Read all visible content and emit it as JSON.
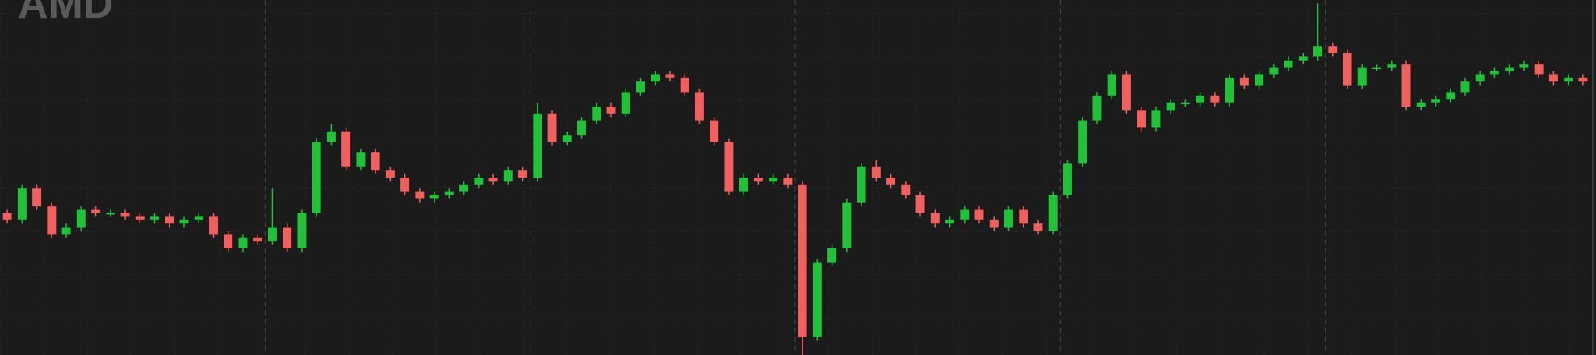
{
  "chart_data": {
    "type": "candlestick",
    "watermark": "AMD",
    "ylim": [
      0,
      100
    ],
    "up_color": "#22c13a",
    "down_color": "#f0605e",
    "open": [
      40,
      38,
      47,
      42,
      34,
      36,
      41,
      40,
      40,
      39,
      38,
      39,
      37,
      38,
      39,
      34,
      30,
      33,
      32,
      36,
      30,
      40,
      60,
      63,
      53,
      57,
      52,
      50,
      46,
      44,
      45,
      46,
      48,
      50,
      49,
      52,
      50,
      68,
      60,
      62,
      66,
      70,
      68,
      74,
      77,
      79,
      78,
      74,
      66,
      60,
      46,
      50,
      49,
      50,
      48,
      5,
      26,
      30,
      43,
      53,
      50,
      48,
      45,
      40,
      37,
      38,
      41,
      38,
      36,
      41,
      37,
      35,
      45,
      54,
      66,
      73,
      79,
      69,
      64,
      69,
      71,
      71,
      73,
      71,
      78,
      76,
      79,
      81,
      83,
      84,
      87,
      85,
      76,
      81,
      81,
      82,
      70,
      71,
      72,
      74,
      77,
      79,
      80,
      81,
      82,
      79,
      77,
      78
    ],
    "high": [
      41,
      48,
      48,
      43,
      37,
      42,
      42,
      41,
      41,
      40,
      40,
      40,
      39,
      40,
      40,
      35,
      34,
      34,
      47,
      37,
      41,
      61,
      65,
      64,
      58,
      58,
      53,
      51,
      47,
      46,
      47,
      49,
      51,
      51,
      53,
      53,
      71,
      69,
      63,
      67,
      71,
      71,
      75,
      78,
      80,
      80,
      79,
      75,
      67,
      61,
      51,
      51,
      51,
      51,
      49,
      27,
      31,
      44,
      54,
      55,
      51,
      49,
      46,
      41,
      39,
      42,
      42,
      39,
      42,
      42,
      38,
      46,
      55,
      67,
      74,
      80,
      80,
      70,
      70,
      72,
      72,
      74,
      74,
      79,
      79,
      80,
      82,
      84,
      85,
      99,
      88,
      86,
      82,
      82,
      83,
      83,
      72,
      73,
      75,
      78,
      80,
      81,
      82,
      83,
      83,
      80,
      79,
      79
    ],
    "low": [
      37,
      37,
      41,
      33,
      33,
      35,
      39,
      39,
      38,
      37,
      37,
      36,
      36,
      37,
      33,
      29,
      29,
      31,
      31,
      29,
      29,
      39,
      59,
      52,
      52,
      51,
      49,
      45,
      43,
      43,
      44,
      45,
      47,
      48,
      48,
      49,
      49,
      59,
      59,
      61,
      65,
      67,
      67,
      73,
      76,
      77,
      73,
      65,
      59,
      45,
      45,
      48,
      48,
      47,
      0,
      4,
      25,
      29,
      42,
      49,
      47,
      44,
      39,
      36,
      36,
      37,
      37,
      35,
      35,
      36,
      34,
      34,
      44,
      53,
      65,
      72,
      68,
      63,
      63,
      68,
      70,
      70,
      70,
      70,
      75,
      75,
      78,
      80,
      82,
      83,
      84,
      75,
      75,
      80,
      80,
      69,
      69,
      70,
      71,
      73,
      76,
      78,
      79,
      80,
      78,
      76,
      76,
      76
    ],
    "close": [
      38,
      47,
      42,
      34,
      36,
      41,
      40,
      40,
      39,
      38,
      39,
      37,
      38,
      39,
      34,
      30,
      33,
      32,
      36,
      30,
      40,
      60,
      63,
      53,
      57,
      52,
      50,
      46,
      44,
      45,
      46,
      48,
      50,
      49,
      52,
      50,
      68,
      60,
      62,
      66,
      70,
      68,
      74,
      77,
      79,
      78,
      74,
      66,
      60,
      46,
      50,
      49,
      50,
      48,
      5,
      26,
      30,
      43,
      53,
      50,
      48,
      45,
      40,
      37,
      38,
      41,
      38,
      36,
      41,
      37,
      35,
      45,
      54,
      66,
      73,
      79,
      69,
      64,
      69,
      71,
      71,
      73,
      71,
      78,
      76,
      79,
      81,
      83,
      84,
      87,
      85,
      76,
      81,
      81,
      82,
      70,
      71,
      72,
      74,
      77,
      79,
      80,
      81,
      82,
      79,
      77,
      78,
      77
    ]
  }
}
